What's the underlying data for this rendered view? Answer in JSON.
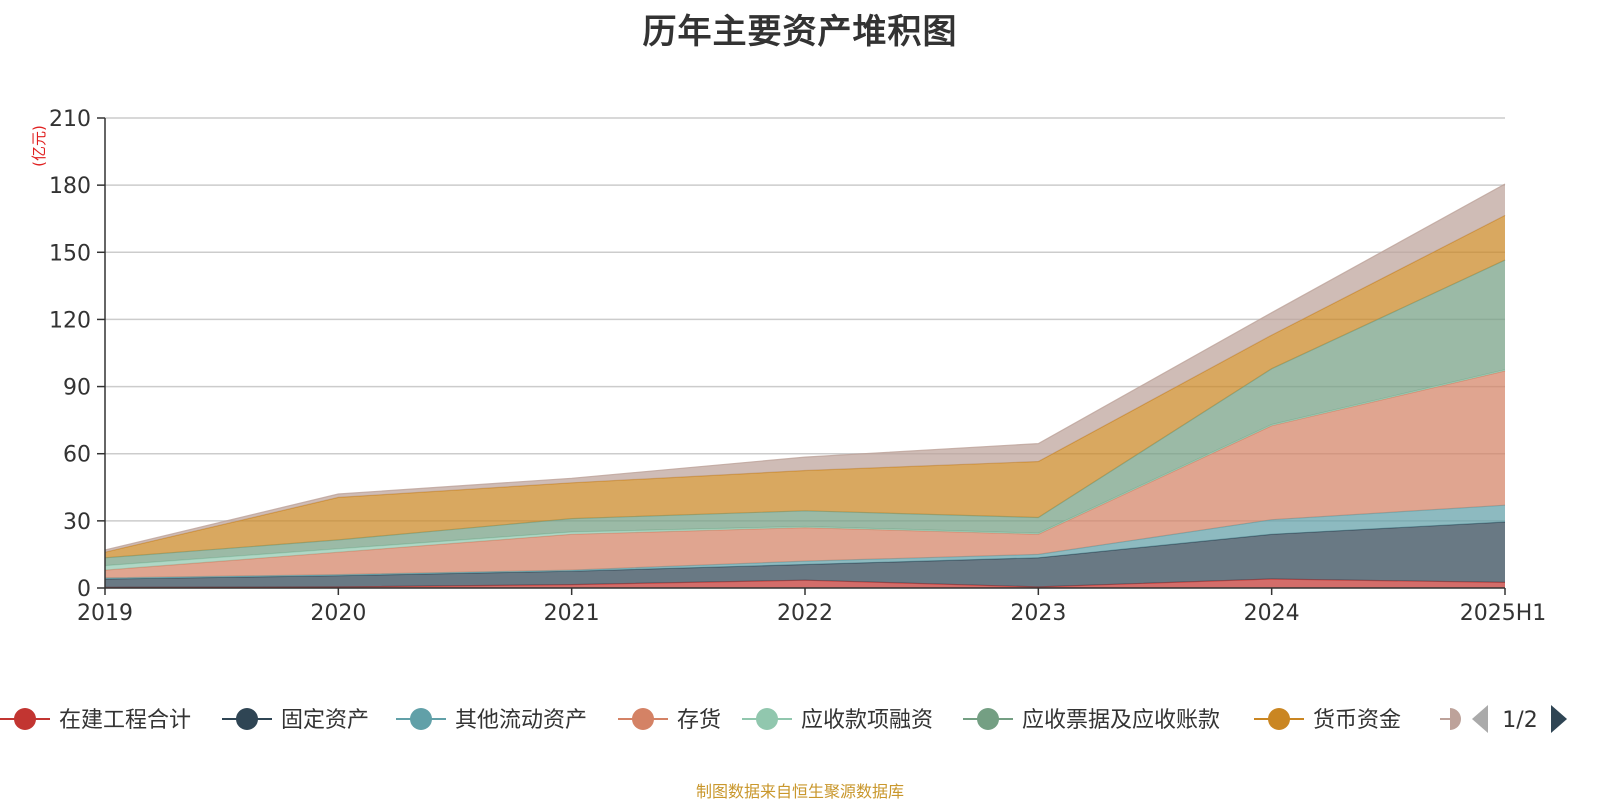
{
  "chart_data": {
    "type": "area",
    "title": "历年主要资产堆积图",
    "y_unit": "(亿元)",
    "categories": [
      "2019",
      "2020",
      "2021",
      "2022",
      "2023",
      "2024",
      "2025H1"
    ],
    "ylim": [
      0,
      210
    ],
    "y_ticks": [
      "0",
      "30",
      "60",
      "90",
      "120",
      "150",
      "180",
      "210"
    ],
    "grid": true,
    "stacked": true,
    "legend_position": "bottom",
    "series": [
      {
        "name": "在建工程合计",
        "color": "#c23531",
        "values": [
          0.3,
          0.5,
          1.5,
          3.5,
          0.5,
          4.0,
          2.5
        ]
      },
      {
        "name": "固定资产",
        "color": "#2f4554",
        "values": [
          3.7,
          5.0,
          6.0,
          7.0,
          13.0,
          20.0,
          27.0
        ]
      },
      {
        "name": "其他流动资产",
        "color": "#61a0a8",
        "values": [
          0.5,
          0.5,
          0.5,
          1.5,
          1.5,
          6.5,
          7.5
        ]
      },
      {
        "name": "存货",
        "color": "#d48265",
        "values": [
          3.5,
          10.0,
          16.0,
          15.0,
          9.0,
          42.0,
          60.0
        ]
      },
      {
        "name": "应收款项融资",
        "color": "#91c7ae",
        "values": [
          2.0,
          1.5,
          1.0,
          0.5,
          0.5,
          0.5,
          0.5
        ]
      },
      {
        "name": "应收票据及应收账款",
        "color": "#749f83",
        "values": [
          3.5,
          4.0,
          6.0,
          7.0,
          7.0,
          25.0,
          49.0
        ]
      },
      {
        "name": "货币资金",
        "color": "#ca8622",
        "values": [
          2.5,
          19.0,
          16.0,
          18.0,
          25.0,
          15.0,
          20.0
        ]
      },
      {
        "name": "",
        "color": "#bda29a",
        "values": [
          1.0,
          1.5,
          2.0,
          6.0,
          8.0,
          10.0,
          14.0
        ]
      }
    ]
  },
  "legend": {
    "page_indicator": "1/2"
  },
  "source_note": "制图数据来自恒生聚源数据库"
}
